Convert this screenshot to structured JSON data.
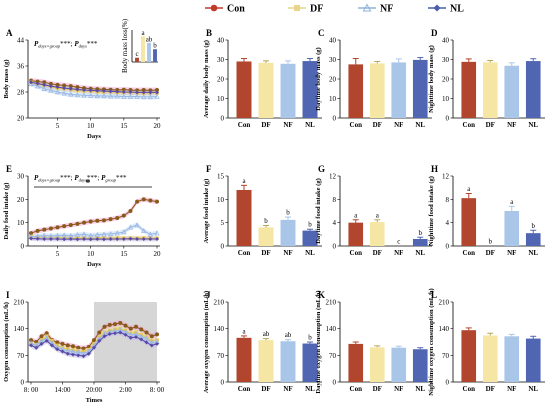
{
  "legend": [
    {
      "label": "Con",
      "color": "#c0392b",
      "marker": "circle"
    },
    {
      "label": "DF",
      "color": "#e8d48a",
      "marker": "square"
    },
    {
      "label": "NF",
      "color": "#8eb3dc",
      "marker": "triangle"
    },
    {
      "label": "NL",
      "color": "#4a5ea8",
      "marker": "diamond"
    }
  ],
  "colors": {
    "Con": "#b1452e",
    "DF": "#f5e6a3",
    "NF": "#a9c6e8",
    "NL": "#5066b3",
    "shade": "#d6d6d6"
  },
  "chart_data": [
    {
      "id": "A",
      "panel": "A",
      "type": "line",
      "xlabel": "Days",
      "ylabel": "Body mass (g)",
      "ylim": [
        20,
        44
      ],
      "yticks": [
        20,
        28,
        36,
        44
      ],
      "xticks": [
        5,
        10,
        15,
        20
      ],
      "x": [
        1,
        2,
        3,
        4,
        5,
        6,
        7,
        8,
        9,
        10,
        11,
        12,
        13,
        14,
        15,
        16,
        17,
        18,
        19,
        20
      ],
      "stats": [
        "P",
        "days×group",
        "***; ",
        "P",
        "days",
        "***"
      ],
      "series": [
        {
          "name": "Con",
          "values": [
            31.5,
            31.2,
            31,
            30.5,
            30.2,
            30,
            29.8,
            29.5,
            29.2,
            29,
            28.9,
            28.8,
            28.7,
            28.6,
            28.7,
            28.6,
            28.5,
            28.6,
            28.5,
            28.6
          ]
        },
        {
          "name": "DF",
          "values": [
            31,
            30.4,
            30,
            29.6,
            29.2,
            29,
            28.7,
            28.5,
            28.3,
            28.2,
            28.1,
            28,
            28,
            27.9,
            27.9,
            27.8,
            27.8,
            27.7,
            27.7,
            27.7
          ]
        },
        {
          "name": "NF",
          "values": [
            30.5,
            29.8,
            29,
            28.5,
            28,
            27.6,
            27.3,
            27.1,
            27,
            26.9,
            26.8,
            26.8,
            26.7,
            26.7,
            26.6,
            26.6,
            26.6,
            26.5,
            26.5,
            26.6
          ]
        },
        {
          "name": "NL",
          "values": [
            31,
            30.6,
            30.2,
            29.8,
            29.5,
            29.2,
            29,
            28.8,
            28.6,
            28.5,
            28.4,
            28.3,
            28.2,
            28.1,
            28,
            28,
            27.9,
            27.9,
            27.9,
            27.9
          ]
        }
      ],
      "inset": {
        "ylabel": "Body mass loss(%)",
        "values": [
          2,
          12,
          9,
          6
        ],
        "letters": [
          "c",
          "a",
          "ab",
          "b"
        ]
      }
    },
    {
      "id": "B",
      "panel": "B",
      "type": "bar",
      "ylabel": "Average daily body mass (g)",
      "ylim": [
        0,
        40
      ],
      "yticks": [
        0,
        10,
        20,
        30,
        40
      ],
      "categories": [
        "Con",
        "DF",
        "NF",
        "NL"
      ],
      "values": [
        29,
        28.3,
        27.8,
        29.2
      ],
      "errors": [
        1.5,
        1,
        1.5,
        1.3
      ],
      "letters": []
    },
    {
      "id": "C",
      "panel": "C",
      "type": "bar",
      "ylabel": "Daytime body mass (g)",
      "ylim": [
        0,
        40
      ],
      "yticks": [
        0,
        10,
        20,
        30,
        40
      ],
      "categories": [
        "Con",
        "DF",
        "NF",
        "NL"
      ],
      "values": [
        27.5,
        28,
        28.5,
        29.8
      ],
      "errors": [
        3,
        1,
        1.8,
        1.2
      ],
      "letters": []
    },
    {
      "id": "D",
      "panel": "D",
      "type": "bar",
      "ylabel": "Nighttime body mass (g)",
      "ylim": [
        0,
        40
      ],
      "yticks": [
        0,
        10,
        20,
        30,
        40
      ],
      "categories": [
        "Con",
        "DF",
        "NF",
        "NL"
      ],
      "values": [
        28.8,
        28.5,
        26.8,
        29.2
      ],
      "errors": [
        1.5,
        1,
        1.5,
        1.2
      ],
      "letters": []
    },
    {
      "id": "E",
      "panel": "E",
      "type": "line",
      "xlabel": "Days",
      "ylabel": "Daily food intake (g)",
      "ylim": [
        0,
        30
      ],
      "yticks": [
        0,
        10,
        20,
        30
      ],
      "xticks": [
        5,
        10,
        15,
        20
      ],
      "x": [
        1,
        2,
        3,
        4,
        5,
        6,
        7,
        8,
        9,
        10,
        11,
        12,
        13,
        14,
        15,
        16,
        17,
        18,
        19,
        20
      ],
      "stats": [
        "P",
        "days×group",
        "***; ",
        "P",
        "days",
        "***; ",
        "P",
        "group",
        "***"
      ],
      "star": "*",
      "series": [
        {
          "name": "Con",
          "values": [
            5.5,
            6.5,
            7,
            7.5,
            8,
            8.5,
            9,
            9.5,
            10,
            10.5,
            10.8,
            11,
            11.5,
            12,
            13,
            15,
            19,
            20,
            19.5,
            19
          ]
        },
        {
          "name": "DF",
          "values": [
            4,
            3.8,
            3.7,
            3.6,
            3.5,
            3.5,
            3.4,
            3.4,
            3.4,
            3.3,
            3.4,
            3.4,
            3.3,
            3.4,
            3.3,
            3.4,
            3.3,
            3.4,
            3.3,
            3.3
          ]
        },
        {
          "name": "NF",
          "values": [
            4,
            4.2,
            4.5,
            4.3,
            4.5,
            4.6,
            4.4,
            4.8,
            5,
            4.5,
            4.8,
            5,
            5.2,
            5.5,
            6,
            8,
            9,
            6.5,
            5,
            5.5
          ]
        },
        {
          "name": "NL",
          "values": [
            3.2,
            3.1,
            3,
            3,
            3,
            2.9,
            3,
            2.9,
            3,
            2.9,
            3,
            2.9,
            3,
            3,
            3,
            3.1,
            3,
            3,
            3,
            3
          ]
        }
      ]
    },
    {
      "id": "F",
      "panel": "F",
      "type": "bar",
      "ylabel": "Average food intake (g)",
      "ylim": [
        0,
        15
      ],
      "yticks": [
        0,
        5,
        10,
        15
      ],
      "categories": [
        "Con",
        "DF",
        "NF",
        "NL"
      ],
      "values": [
        12,
        4,
        5.6,
        3.3
      ],
      "errors": [
        1,
        0.4,
        0.6,
        0.3
      ],
      "letters": [
        "a",
        "b",
        "b",
        "b"
      ]
    },
    {
      "id": "G",
      "panel": "G",
      "type": "bar",
      "ylabel": "Daytime food intake (g)",
      "ylim": [
        0,
        12
      ],
      "yticks": [
        0,
        4,
        8,
        12
      ],
      "categories": [
        "Con",
        "DF",
        "NF",
        "NL"
      ],
      "values": [
        4,
        4.1,
        0,
        1.2
      ],
      "errors": [
        0.5,
        0.4,
        0,
        0.3
      ],
      "letters": [
        "a",
        "a",
        "c",
        "b"
      ]
    },
    {
      "id": "H",
      "panel": "H",
      "type": "bar",
      "ylabel": "Nighttime food intake (g)",
      "ylim": [
        0,
        12
      ],
      "yticks": [
        0,
        4,
        8,
        12
      ],
      "categories": [
        "Con",
        "DF",
        "NF",
        "NL"
      ],
      "values": [
        8.2,
        0,
        6,
        2.2
      ],
      "errors": [
        0.8,
        0,
        0.8,
        0.5
      ],
      "letters": [
        "a",
        "b",
        "a",
        "b"
      ]
    },
    {
      "id": "I",
      "panel": "I",
      "type": "line",
      "xlabel": "Times",
      "ylabel": "Oxygen consumption (mL/h)",
      "ylim": [
        0,
        210
      ],
      "yticks": [
        0,
        70,
        140,
        210
      ],
      "xticks": [
        "8: 00",
        "14:00",
        "20:00",
        "2:00",
        "8: 00"
      ],
      "xtick_hours": [
        0,
        6,
        12,
        18,
        24
      ],
      "shade": [
        12,
        24
      ],
      "x": [
        0,
        1,
        2,
        3,
        4,
        5,
        6,
        7,
        8,
        9,
        10,
        11,
        12,
        13,
        14,
        15,
        16,
        17,
        18,
        19,
        20,
        21,
        22,
        23,
        24
      ],
      "series": [
        {
          "name": "Con",
          "values": [
            110,
            105,
            120,
            128,
            110,
            104,
            100,
            96,
            94,
            90,
            88,
            92,
            110,
            130,
            145,
            150,
            152,
            155,
            148,
            140,
            145,
            138,
            130,
            120,
            125
          ]
        },
        {
          "name": "DF",
          "values": [
            100,
            98,
            110,
            120,
            108,
            96,
            90,
            86,
            84,
            82,
            80,
            85,
            100,
            118,
            130,
            135,
            138,
            140,
            135,
            128,
            130,
            124,
            118,
            108,
            110
          ]
        },
        {
          "name": "NF",
          "values": [
            102,
            96,
            108,
            115,
            102,
            92,
            86,
            82,
            80,
            78,
            76,
            80,
            96,
            114,
            126,
            132,
            134,
            136,
            132,
            124,
            126,
            120,
            114,
            104,
            106
          ]
        },
        {
          "name": "NL",
          "values": [
            96,
            90,
            100,
            108,
            96,
            86,
            80,
            74,
            72,
            70,
            68,
            74,
            90,
            108,
            120,
            126,
            128,
            130,
            124,
            116,
            118,
            112,
            104,
            96,
            100
          ]
        }
      ]
    },
    {
      "id": "J",
      "panel": "J",
      "type": "bar",
      "ylabel": "Average oxygen consumption (mL/h)",
      "ylim": [
        0,
        210
      ],
      "yticks": [
        0,
        70,
        140,
        210
      ],
      "categories": [
        "Con",
        "DF",
        "NF",
        "NL"
      ],
      "values": [
        116,
        110,
        107,
        101
      ],
      "errors": [
        5,
        4,
        4,
        4
      ],
      "letters": [
        "a",
        "ab",
        "ab",
        "b"
      ]
    },
    {
      "id": "K",
      "panel": "K",
      "type": "bar",
      "ylabel": "Daytime oxygen consumption (mL/h)",
      "ylim": [
        0,
        210
      ],
      "yticks": [
        0,
        70,
        140,
        210
      ],
      "categories": [
        "Con",
        "DF",
        "NF",
        "NL"
      ],
      "values": [
        100,
        91,
        90,
        86
      ],
      "errors": [
        5,
        4,
        4,
        4
      ],
      "letters": []
    },
    {
      "id": "L",
      "panel": "L",
      "type": "bar",
      "ylabel": "Nighttime oxygen consumption (mL/h)",
      "ylim": [
        0,
        210
      ],
      "yticks": [
        0,
        70,
        140,
        210
      ],
      "categories": [
        "Con",
        "DF",
        "NF",
        "NL"
      ],
      "values": [
        136,
        122,
        120,
        114
      ],
      "errors": [
        6,
        6,
        5,
        6
      ],
      "letters": []
    }
  ]
}
